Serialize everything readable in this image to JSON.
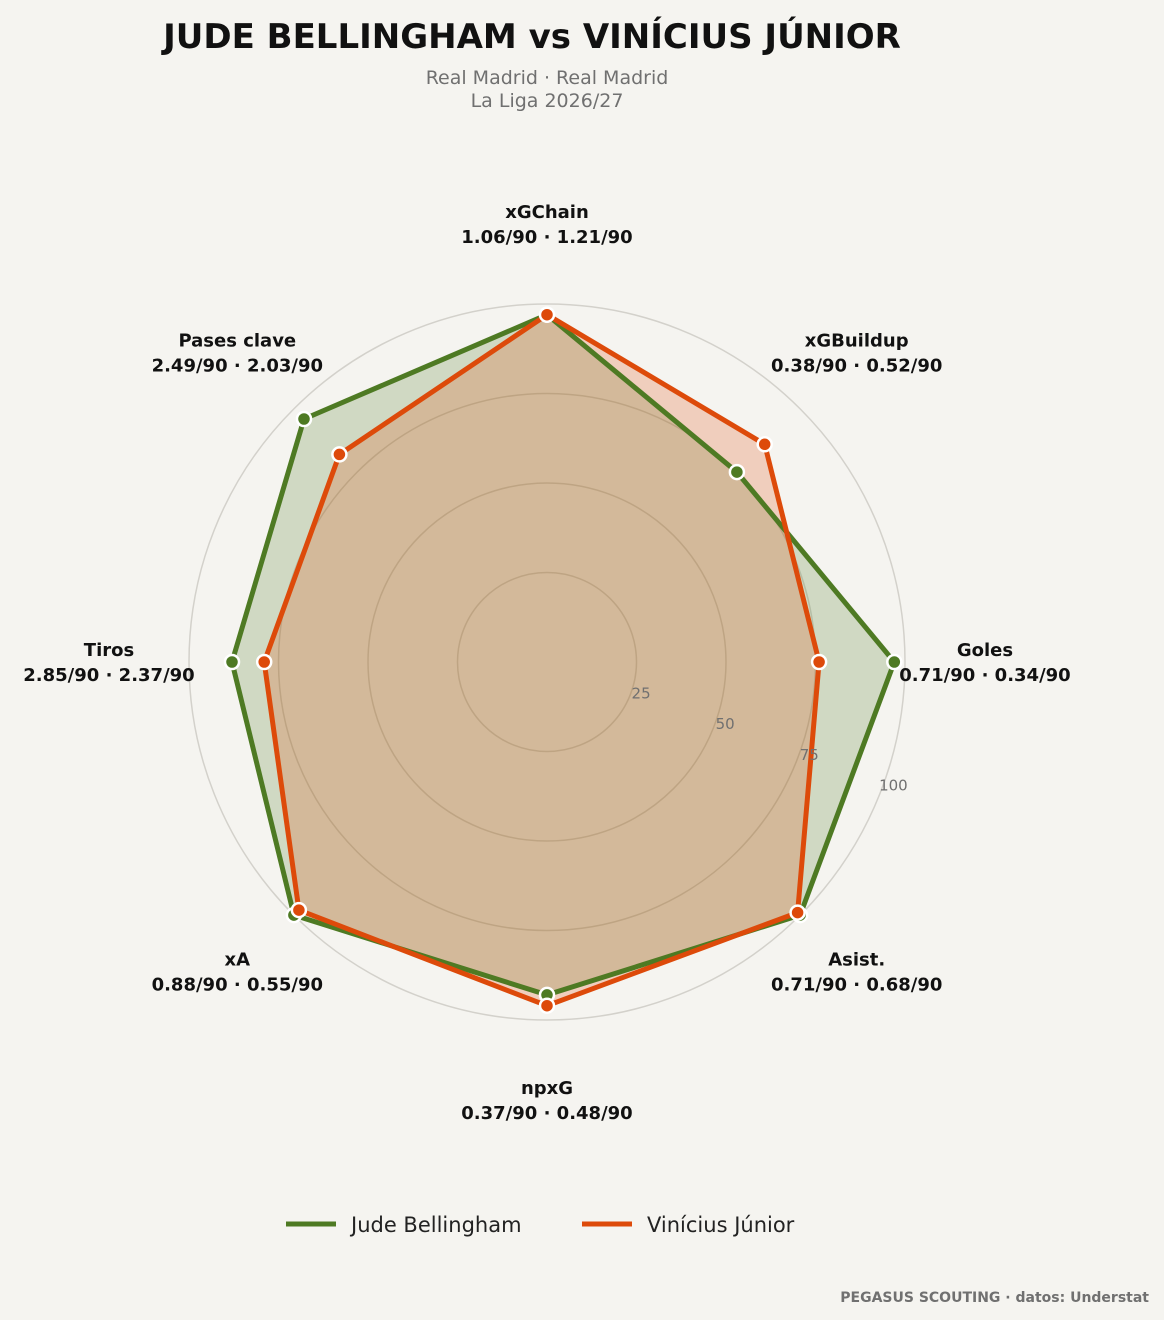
{
  "title": "JUDE BELLINGHAM  vs  VINÍCIUS JÚNIOR",
  "subtitle_line1": "Real Madrid · Real Madrid",
  "subtitle_line2": "La Liga 2026/27",
  "credit": "PEGASUS SCOUTING · datos: Understat",
  "chart_data": {
    "type": "radar",
    "scale": [
      0,
      100
    ],
    "ring_ticks": [
      "25",
      "50",
      "75",
      "100"
    ],
    "grid": true,
    "legend_position": "bottom",
    "axes": [
      {
        "name": "xGChain",
        "label": "1.06/90 · 1.21/90"
      },
      {
        "name": "xGBuildup",
        "label": "0.38/90 · 0.52/90"
      },
      {
        "name": "Goles",
        "label": "0.71/90 · 0.34/90"
      },
      {
        "name": "Asist.",
        "label": "0.71/90 · 0.68/90"
      },
      {
        "name": "npxG",
        "label": "0.37/90 · 0.48/90"
      },
      {
        "name": "xA",
        "label": "0.88/90 · 0.55/90"
      },
      {
        "name": "Tiros",
        "label": "2.85/90 · 2.37/90"
      },
      {
        "name": "Pases clave",
        "label": "2.49/90 · 2.03/90"
      }
    ],
    "series": [
      {
        "name": "Jude Bellingham",
        "color": "#4e7a23",
        "fill": "#4e7a23",
        "values": [
          97,
          75,
          97,
          100,
          93,
          100,
          88,
          96
        ]
      },
      {
        "name": "Vinícius Júnior",
        "color": "#dd4a0a",
        "fill": "#dd4a0a",
        "values": [
          97,
          86,
          76,
          99,
          96,
          98,
          79,
          82
        ]
      }
    ]
  }
}
